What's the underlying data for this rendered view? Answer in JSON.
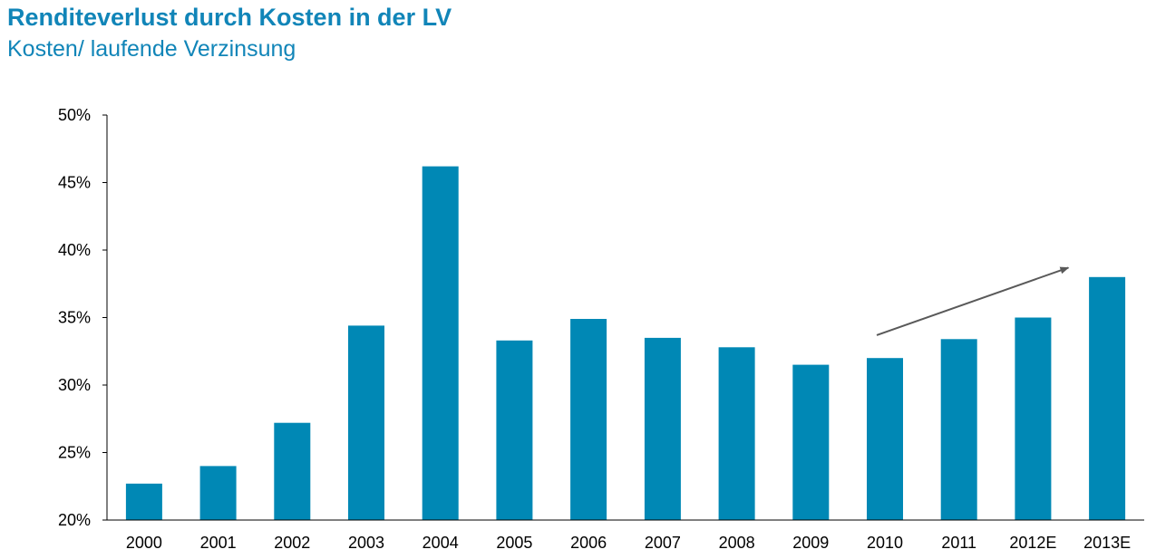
{
  "header": {
    "title": "Renditeverlust durch Kosten in der LV",
    "subtitle": "Kosten/ laufende Verzinsung"
  },
  "chart_data": {
    "type": "bar",
    "title": "Renditeverlust durch Kosten in der LV",
    "subtitle": "Kosten/ laufende Verzinsung",
    "categories": [
      "2000",
      "2001",
      "2002",
      "2003",
      "2004",
      "2005",
      "2006",
      "2007",
      "2008",
      "2009",
      "2010",
      "2011",
      "2012E",
      "2013E"
    ],
    "values": [
      22.7,
      24.0,
      27.2,
      34.4,
      46.2,
      33.3,
      34.9,
      33.5,
      32.8,
      31.5,
      32.0,
      33.4,
      35.0,
      38.0
    ],
    "value_unit": "%",
    "ylim": [
      20,
      50
    ],
    "yticks": [
      20,
      25,
      30,
      35,
      40,
      45,
      50
    ],
    "ytick_labels": [
      "20%",
      "25%",
      "30%",
      "35%",
      "40%",
      "45%",
      "50%"
    ],
    "grid": false,
    "legend": "none",
    "bar_color": "#0088b5",
    "annotation": {
      "type": "trend-arrow",
      "from": {
        "x": "2010",
        "y": 33.7
      },
      "to": {
        "x": "2012E",
        "y": 38.7
      },
      "color": "#595959"
    }
  }
}
